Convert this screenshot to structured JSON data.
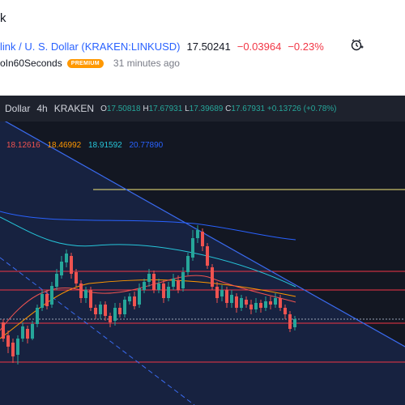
{
  "header": {
    "title_partial": "k",
    "symbol_name": "link / U. S. Dollar (KRAKEN:LINKUSD)",
    "price": "17.50241",
    "change": "−0.03964",
    "change_pct": "−0.23%",
    "author": "oIn60Seconds",
    "badge": "PREMIUM",
    "time_ago": "31 minutes ago",
    "alarm_icon": "alarm-clock-icon"
  },
  "chart_bar": {
    "symbol": "Dollar",
    "timeframe": "4h",
    "exchange": "KRAKEN",
    "o_label": "O",
    "o_val": "17.50818",
    "h_label": "H",
    "h_val": "17.67931",
    "l_label": "L",
    "l_val": "17.39689",
    "c_label": "C",
    "c_val": "17.67931",
    "change": "+0.13726 (+0.78%)"
  },
  "indicators": {
    "v1": "18.12616",
    "v2": "18.46992",
    "v3": "18.91592",
    "v4": "20.77890"
  },
  "colors": {
    "bg": "#131722",
    "up": "#26a69a",
    "down": "#ef5350",
    "ma_red": "#ef5350",
    "ma_orange": "#ff9800",
    "ma_cyan": "#26c6da",
    "ma_blue": "#2962ff",
    "trend": "#3a6bf0",
    "h_red": "#f23645",
    "h_yellow": "#f5e97a"
  }
}
